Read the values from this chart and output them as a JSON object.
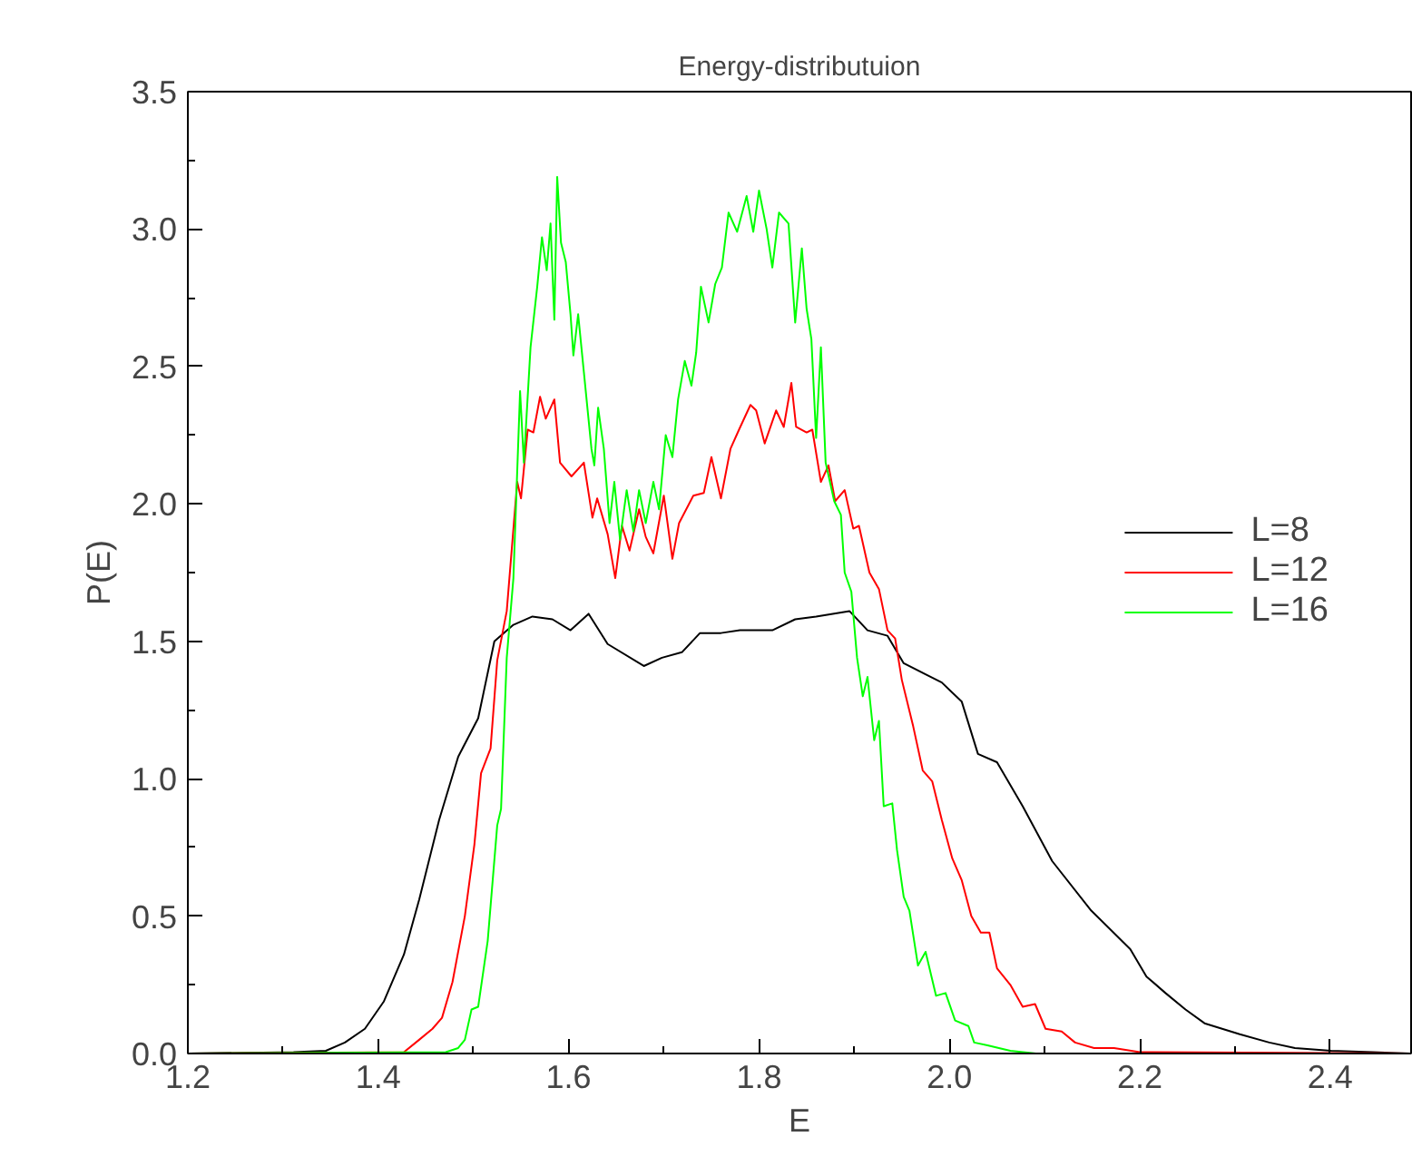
{
  "chart_data": {
    "type": "line",
    "title": "Energy-distributuion",
    "xlabel": "E",
    "ylabel": "P(E)",
    "xlim": [
      1.2,
      2.485
    ],
    "ylim": [
      0,
      3.5
    ],
    "xticks": [
      1.2,
      1.4,
      1.6,
      1.8,
      {
        "value": 2.0,
        "label": "2.0"
      },
      2.2,
      2.4
    ],
    "yticks": [
      {
        "value": 0,
        "label": "0.0"
      },
      0.5,
      {
        "value": 1.0,
        "label": "1.0"
      },
      1.5,
      {
        "value": 2.0,
        "label": "2.0"
      },
      2.5,
      {
        "value": 3.0,
        "label": "3.0"
      },
      3.5
    ],
    "grid": false,
    "legend": "right",
    "marker": "none",
    "line_style": "solid",
    "series": [
      {
        "name": "L=8",
        "color": "#000000",
        "x": [
          1.2,
          1.311,
          1.345,
          1.365,
          1.386,
          1.406,
          1.427,
          1.443,
          1.464,
          1.484,
          1.505,
          1.522,
          1.542,
          1.562,
          1.583,
          1.602,
          1.621,
          1.641,
          1.679,
          1.698,
          1.719,
          1.738,
          1.76,
          1.78,
          1.814,
          1.838,
          1.86,
          1.895,
          1.914,
          1.935,
          1.952,
          1.992,
          2.013,
          2.03,
          2.05,
          2.077,
          2.108,
          2.149,
          2.19,
          2.207,
          2.227,
          2.248,
          2.268,
          2.305,
          2.336,
          2.363,
          2.401,
          2.445,
          2.484
        ],
        "values": [
          0,
          0.005,
          0.01,
          0.04,
          0.09,
          0.19,
          0.36,
          0.56,
          0.85,
          1.08,
          1.22,
          1.5,
          1.56,
          1.59,
          1.58,
          1.54,
          1.6,
          1.49,
          1.41,
          1.44,
          1.46,
          1.53,
          1.53,
          1.54,
          1.54,
          1.58,
          1.59,
          1.61,
          1.54,
          1.52,
          1.42,
          1.35,
          1.28,
          1.09,
          1.06,
          0.9,
          0.7,
          0.52,
          0.38,
          0.28,
          0.22,
          0.16,
          0.11,
          0.07,
          0.04,
          0.02,
          0.01,
          0.005,
          0
        ]
      },
      {
        "name": "L=12",
        "color": "#ff0000",
        "x": [
          1.2,
          1.427,
          1.443,
          1.457,
          1.467,
          1.478,
          1.491,
          1.501,
          1.508,
          1.518,
          1.525,
          1.535,
          1.546,
          1.55,
          1.557,
          1.563,
          1.57,
          1.576,
          1.585,
          1.591,
          1.603,
          1.616,
          1.625,
          1.63,
          1.641,
          1.649,
          1.656,
          1.664,
          1.674,
          1.681,
          1.689,
          1.7,
          1.709,
          1.716,
          1.731,
          1.742,
          1.75,
          1.76,
          1.77,
          1.779,
          1.791,
          1.797,
          1.806,
          1.818,
          1.826,
          1.834,
          1.839,
          1.85,
          1.856,
          1.865,
          1.873,
          1.88,
          1.89,
          1.899,
          1.905,
          1.916,
          1.926,
          1.935,
          1.943,
          1.95,
          1.962,
          1.972,
          1.982,
          1.992,
          2.003,
          2.013,
          2.023,
          2.033,
          2.042,
          2.05,
          2.064,
          2.077,
          2.09,
          2.101,
          2.118,
          2.132,
          2.152,
          2.173,
          2.2,
          2.484
        ],
        "values": [
          0,
          0.005,
          0.05,
          0.09,
          0.13,
          0.26,
          0.5,
          0.76,
          1.02,
          1.11,
          1.43,
          1.61,
          2.08,
          2.02,
          2.27,
          2.26,
          2.39,
          2.31,
          2.38,
          2.15,
          2.1,
          2.15,
          1.95,
          2.02,
          1.89,
          1.73,
          1.92,
          1.83,
          1.98,
          1.88,
          1.82,
          2.03,
          1.8,
          1.93,
          2.03,
          2.04,
          2.17,
          2.02,
          2.2,
          2.27,
          2.36,
          2.34,
          2.22,
          2.34,
          2.28,
          2.44,
          2.28,
          2.26,
          2.27,
          2.08,
          2.14,
          2.01,
          2.05,
          1.91,
          1.92,
          1.75,
          1.69,
          1.54,
          1.51,
          1.36,
          1.19,
          1.03,
          0.99,
          0.85,
          0.71,
          0.63,
          0.5,
          0.44,
          0.44,
          0.31,
          0.25,
          0.17,
          0.18,
          0.09,
          0.08,
          0.04,
          0.02,
          0.02,
          0.005,
          0
        ]
      },
      {
        "name": "L=16",
        "color": "#00ff00",
        "x": [
          1.2,
          1.471,
          1.484,
          1.491,
          1.498,
          1.505,
          1.515,
          1.525,
          1.529,
          1.535,
          1.542,
          1.549,
          1.553,
          1.56,
          1.567,
          1.572,
          1.577,
          1.581,
          1.585,
          1.588,
          1.592,
          1.597,
          1.602,
          1.605,
          1.61,
          1.616,
          1.624,
          1.627,
          1.631,
          1.637,
          1.643,
          1.648,
          1.654,
          1.661,
          1.668,
          1.674,
          1.681,
          1.689,
          1.695,
          1.702,
          1.709,
          1.715,
          1.722,
          1.729,
          1.734,
          1.739,
          1.747,
          1.754,
          1.761,
          1.768,
          1.777,
          1.787,
          1.794,
          1.8,
          1.808,
          1.814,
          1.821,
          1.831,
          1.838,
          1.845,
          1.85,
          1.855,
          1.86,
          1.865,
          1.87,
          1.879,
          1.886,
          1.89,
          1.897,
          1.903,
          1.909,
          1.914,
          1.921,
          1.926,
          1.931,
          1.94,
          1.945,
          1.952,
          1.958,
          1.967,
          1.975,
          1.986,
          1.996,
          2.006,
          2.02,
          2.026,
          2.04,
          2.064,
          2.091,
          2.484
        ],
        "values": [
          0,
          0.005,
          0.02,
          0.05,
          0.16,
          0.17,
          0.41,
          0.83,
          0.89,
          1.44,
          1.73,
          2.41,
          2.15,
          2.57,
          2.79,
          2.97,
          2.85,
          3.02,
          2.67,
          3.19,
          2.95,
          2.88,
          2.69,
          2.54,
          2.69,
          2.48,
          2.2,
          2.14,
          2.35,
          2.2,
          1.93,
          2.08,
          1.87,
          2.05,
          1.9,
          2.05,
          1.93,
          2.08,
          1.98,
          2.25,
          2.17,
          2.38,
          2.52,
          2.43,
          2.55,
          2.79,
          2.66,
          2.8,
          2.86,
          3.06,
          2.99,
          3.12,
          2.99,
          3.14,
          3.0,
          2.86,
          3.06,
          3.02,
          2.66,
          2.93,
          2.71,
          2.6,
          2.24,
          2.57,
          2.15,
          2.01,
          1.96,
          1.75,
          1.68,
          1.44,
          1.3,
          1.37,
          1.14,
          1.21,
          0.9,
          0.91,
          0.74,
          0.57,
          0.52,
          0.32,
          0.37,
          0.21,
          0.22,
          0.12,
          0.1,
          0.04,
          0.03,
          0.01,
          0,
          0
        ]
      }
    ]
  }
}
